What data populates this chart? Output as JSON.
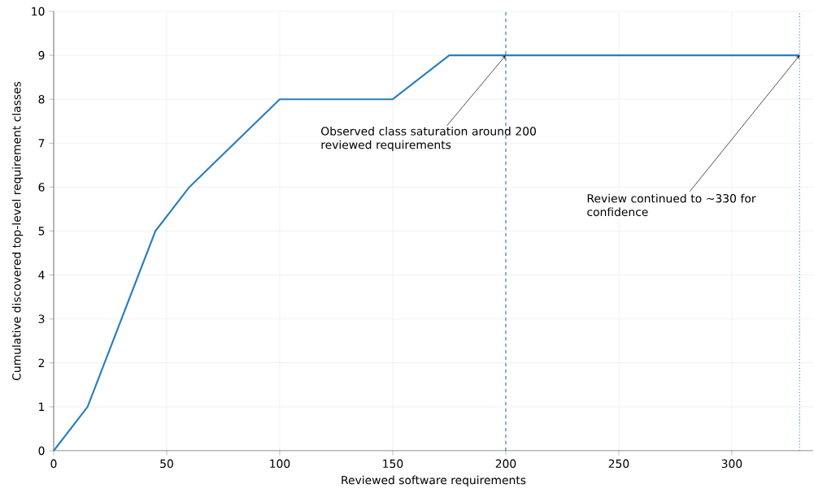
{
  "chart_data": {
    "type": "line",
    "xlabel": "Reviewed software requirements",
    "ylabel": "Cumulative discovered top-level requirement classes",
    "x": [
      0,
      15,
      45,
      60,
      100,
      150,
      175,
      200,
      330
    ],
    "series": [
      {
        "color": "#2a7fba",
        "values": [
          0,
          1,
          5,
          6,
          8,
          8,
          9,
          9,
          9
        ]
      }
    ],
    "xlim": [
      0,
      336
    ],
    "ylim": [
      0,
      10
    ],
    "xticks": [
      0,
      50,
      100,
      150,
      200,
      250,
      300
    ],
    "yticks": [
      0,
      1,
      2,
      3,
      4,
      5,
      6,
      7,
      8,
      9,
      10
    ],
    "grid": true,
    "marker": "none",
    "line_style": "solid",
    "ref_lines": [
      {
        "axis": "x",
        "value": 200,
        "color": "#1f77b4",
        "line_style": "dashed"
      },
      {
        "axis": "x",
        "value": 330,
        "color": "#1f77b4",
        "line_style": "dotted"
      }
    ],
    "annotations": [
      {
        "text": "Observed class saturation around 200 reviewed requirements",
        "x": 200,
        "y": 9
      },
      {
        "text": "Review continued to ~330 for confidence",
        "x": 330,
        "y": 9
      }
    ]
  }
}
